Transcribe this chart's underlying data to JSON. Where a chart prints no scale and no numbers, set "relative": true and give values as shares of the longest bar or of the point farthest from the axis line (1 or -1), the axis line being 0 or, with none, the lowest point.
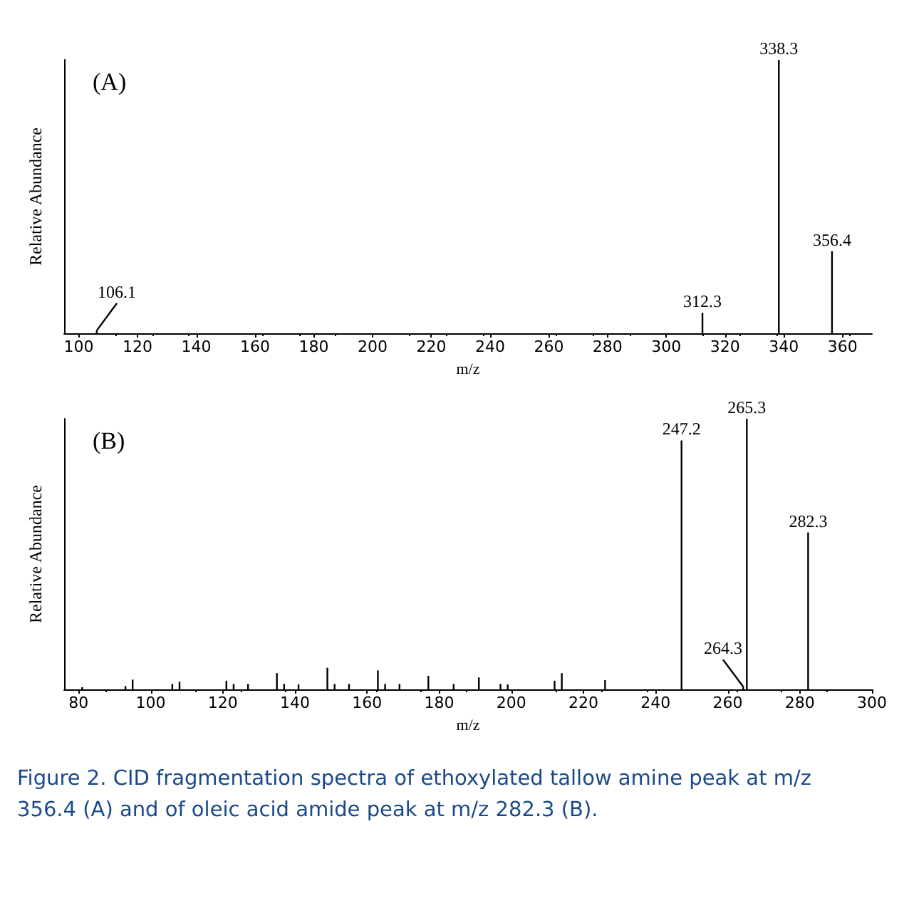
{
  "chart_data": [
    {
      "type": "bar",
      "title": "(A)",
      "xlabel": "m/z",
      "ylabel": "Relative Abundance",
      "relative": true,
      "xlim": [
        95,
        370
      ],
      "xticks": [
        100,
        120,
        140,
        160,
        180,
        200,
        220,
        240,
        260,
        280,
        300,
        320,
        340,
        360
      ],
      "x": [
        106.1,
        312.3,
        338.3,
        356.4
      ],
      "values": [
        0.01,
        0.075,
        1,
        0.3
      ],
      "color": "#000000",
      "annotations": [
        {
          "text": "106.1",
          "x": 106.1,
          "y": 0.01
        },
        {
          "text": "312.3",
          "x": 312.3,
          "y": 0.075
        },
        {
          "text": "338.3",
          "x": 338.3,
          "y": 1
        },
        {
          "text": "356.4",
          "x": 356.4,
          "y": 0.3
        }
      ]
    },
    {
      "type": "bar",
      "title": "(B)",
      "xlabel": "m/z",
      "ylabel": "Relative Abundance",
      "relative": true,
      "xlim": [
        76,
        300
      ],
      "xticks": [
        80,
        100,
        120,
        140,
        160,
        180,
        200,
        220,
        240,
        260,
        280,
        300
      ],
      "x": [
        81,
        93,
        95,
        106,
        108,
        121,
        123,
        127,
        135,
        137,
        141,
        149,
        151,
        155,
        163,
        165,
        169,
        177,
        184,
        191,
        197,
        199,
        212,
        214,
        226,
        247.2,
        264.3,
        265.3,
        282.3
      ],
      "values": [
        0.008,
        0.012,
        0.036,
        0.02,
        0.028,
        0.032,
        0.02,
        0.02,
        0.06,
        0.02,
        0.018,
        0.08,
        0.02,
        0.02,
        0.07,
        0.02,
        0.02,
        0.05,
        0.02,
        0.044,
        0.02,
        0.018,
        0.032,
        0.06,
        0.034,
        0.92,
        0.01,
        1,
        0.58
      ],
      "color": "#000000",
      "annotations": [
        {
          "text": "247.2",
          "x": 247.2,
          "y": 0.92
        },
        {
          "text": "264.3",
          "x": 264.3,
          "y": 0.01
        },
        {
          "text": "265.3",
          "x": 265.3,
          "y": 1
        },
        {
          "text": "282.3",
          "x": 282.3,
          "y": 0.58
        },
        "Figure 2. CID fragmentation spectra of ethoxylated tallow amine peak at m/z 356.4 (A) and of oleic acid amide peak at m/z 282.3 (B)."
      ]
    }
  ]
}
